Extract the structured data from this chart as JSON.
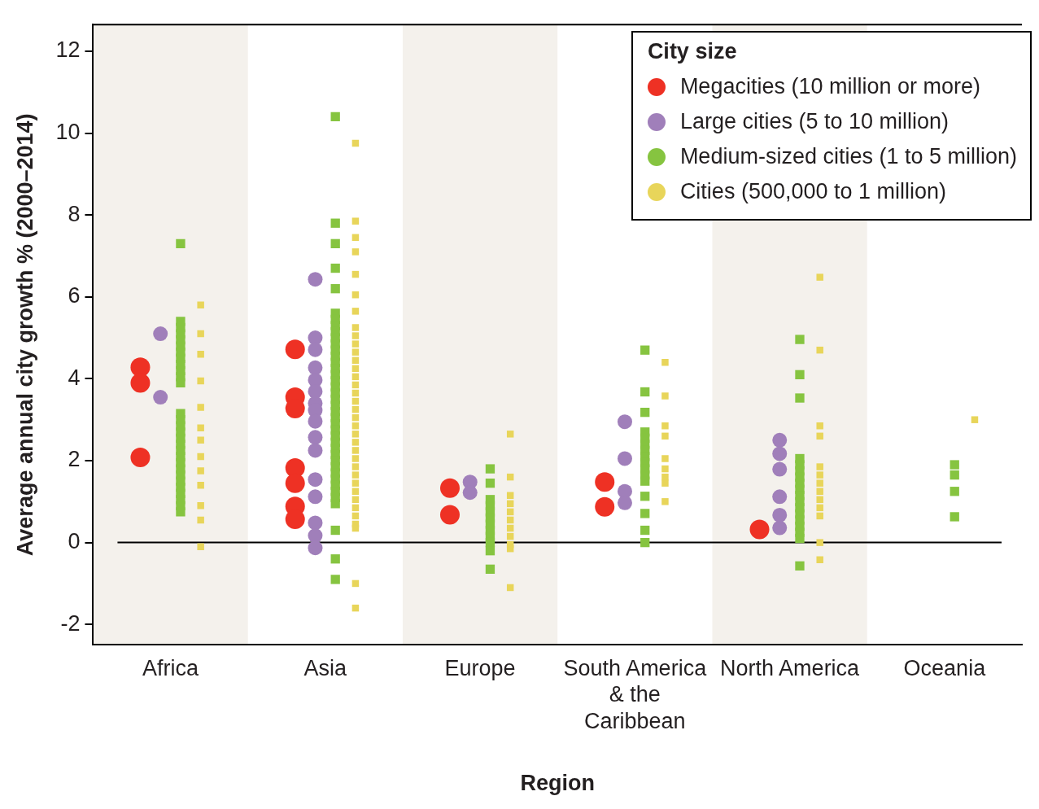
{
  "chart_data": {
    "type": "scatter",
    "xlabel": "Region",
    "ylabel": "Average annual city growth % (2000–2014)",
    "legend_title": "City size",
    "legend": "top right",
    "grid": false,
    "categories": [
      "Africa",
      "Asia",
      "Europe",
      "South America & the Caribbean",
      "North America",
      "Oceania"
    ],
    "ylim": [
      -2.5,
      12.65
    ],
    "yticks": [
      -2,
      0,
      2,
      4,
      6,
      8,
      10,
      12
    ],
    "bands": [
      {
        "axis": "x",
        "from": "Africa",
        "to": "Africa",
        "color": "#f4f1ec"
      },
      {
        "axis": "x",
        "from": "Europe",
        "to": "Europe",
        "color": "#f4f1ec"
      },
      {
        "axis": "x",
        "from": "North America",
        "to": "North America",
        "color": "#f4f1ec"
      }
    ],
    "ref_lines": [
      {
        "axis": "y",
        "value": 0,
        "color": "#000000"
      }
    ],
    "series": [
      {
        "name": "Megacities (10 million or more)",
        "color": "#ee3124",
        "marker": "circle",
        "x": [
          "Africa",
          "Africa",
          "Africa",
          "Asia",
          "Asia",
          "Asia",
          "Asia",
          "Asia",
          "Asia",
          "Asia",
          "Europe",
          "Europe",
          "South America & the Caribbean",
          "South America & the Caribbean",
          "North America"
        ],
        "values": [
          4.28,
          3.9,
          2.08,
          4.72,
          3.55,
          3.27,
          1.82,
          1.45,
          0.88,
          0.57,
          1.33,
          0.68,
          1.48,
          0.87,
          0.32
        ]
      },
      {
        "name": "Large cities (5 to 10 million)",
        "color": "#a07fba",
        "marker": "circle",
        "x": [
          "Africa",
          "Africa",
          "Asia",
          "Asia",
          "Asia",
          "Asia",
          "Asia",
          "Asia",
          "Asia",
          "Asia",
          "Asia",
          "Asia",
          "Asia",
          "Asia",
          "Asia",
          "Asia",
          "Asia",
          "Asia",
          "Europe",
          "Europe",
          "South America & the Caribbean",
          "South America & the Caribbean",
          "South America & the Caribbean",
          "South America & the Caribbean",
          "North America",
          "North America",
          "North America",
          "North America",
          "North America",
          "North America"
        ],
        "values": [
          5.1,
          3.55,
          6.43,
          5.0,
          4.71,
          4.27,
          3.97,
          3.69,
          3.4,
          3.23,
          2.96,
          2.57,
          2.25,
          1.54,
          1.12,
          0.48,
          0.17,
          -0.13,
          1.48,
          1.22,
          2.95,
          2.05,
          1.25,
          0.97,
          2.5,
          2.17,
          1.79,
          1.12,
          0.67,
          0.36
        ]
      },
      {
        "name": "Medium-sized cities (1 to 5 million)",
        "color": "#86c440",
        "marker": "square",
        "x": [
          "Africa",
          "Africa",
          "Africa",
          "Africa",
          "Africa",
          "Africa",
          "Africa",
          "Africa",
          "Africa",
          "Africa",
          "Africa",
          "Africa",
          "Africa",
          "Africa",
          "Africa",
          "Africa",
          "Africa",
          "Africa",
          "Africa",
          "Africa",
          "Africa",
          "Africa",
          "Africa",
          "Africa",
          "Africa",
          "Africa",
          "Africa",
          "Africa",
          "Africa",
          "Asia",
          "Asia",
          "Asia",
          "Asia",
          "Asia",
          "Asia",
          "Asia",
          "Asia",
          "Asia",
          "Asia",
          "Asia",
          "Asia",
          "Asia",
          "Asia",
          "Asia",
          "Asia",
          "Asia",
          "Asia",
          "Asia",
          "Asia",
          "Asia",
          "Asia",
          "Asia",
          "Asia",
          "Asia",
          "Asia",
          "Asia",
          "Asia",
          "Asia",
          "Asia",
          "Asia",
          "Asia",
          "Asia",
          "Asia",
          "Asia",
          "Asia",
          "Asia",
          "Asia",
          "Asia",
          "Asia",
          "Europe",
          "Europe",
          "Europe",
          "Europe",
          "Europe",
          "Europe",
          "Europe",
          "Europe",
          "Europe",
          "Europe",
          "Europe",
          "Europe",
          "South America & the Caribbean",
          "South America & the Caribbean",
          "South America & the Caribbean",
          "South America & the Caribbean",
          "South America & the Caribbean",
          "South America & the Caribbean",
          "South America & the Caribbean",
          "South America & the Caribbean",
          "South America & the Caribbean",
          "South America & the Caribbean",
          "South America & the Caribbean",
          "South America & the Caribbean",
          "South America & the Caribbean",
          "South America & the Caribbean",
          "South America & the Caribbean",
          "South America & the Caribbean",
          "North America",
          "North America",
          "North America",
          "North America",
          "North America",
          "North America",
          "North America",
          "North America",
          "North America",
          "North America",
          "North America",
          "North America",
          "North America",
          "North America",
          "North America",
          "North America",
          "North America",
          "North America",
          "Oceania",
          "Oceania",
          "Oceania",
          "Oceania"
        ],
        "values": [
          7.3,
          5.4,
          5.25,
          5.1,
          4.95,
          4.8,
          4.65,
          4.5,
          4.35,
          4.2,
          4.05,
          3.9,
          3.15,
          3.0,
          2.85,
          2.7,
          2.55,
          2.4,
          2.25,
          2.1,
          1.95,
          1.8,
          1.65,
          1.5,
          1.35,
          1.2,
          1.05,
          0.9,
          0.75,
          10.4,
          7.8,
          7.3,
          6.7,
          6.2,
          5.6,
          5.45,
          5.3,
          5.15,
          5.0,
          4.85,
          4.7,
          4.55,
          4.4,
          4.25,
          4.1,
          3.95,
          3.8,
          3.65,
          3.5,
          3.35,
          3.2,
          3.05,
          2.9,
          2.75,
          2.6,
          2.45,
          2.3,
          2.15,
          2.0,
          1.85,
          1.7,
          1.55,
          1.4,
          1.25,
          1.1,
          0.95,
          0.3,
          -0.4,
          -0.9,
          1.8,
          1.45,
          1.05,
          0.9,
          0.75,
          0.6,
          0.45,
          0.3,
          0.15,
          0,
          -0.2,
          -0.65,
          4.7,
          3.68,
          3.18,
          2.7,
          2.55,
          2.4,
          2.25,
          2.1,
          1.95,
          1.8,
          1.65,
          1.5,
          1.13,
          0.71,
          0.3,
          0,
          4.96,
          4.1,
          3.53,
          2.05,
          1.9,
          1.75,
          1.6,
          1.45,
          1.3,
          1.15,
          1.0,
          0.85,
          0.7,
          0.55,
          0.4,
          0.25,
          0.1,
          -0.57,
          1.9,
          1.65,
          1.25,
          0.63
        ]
      },
      {
        "name": "Cities (500,000 to 1 million)",
        "color": "#e8d55a",
        "marker": "square",
        "x": [
          "Africa",
          "Africa",
          "Africa",
          "Africa",
          "Africa",
          "Africa",
          "Africa",
          "Africa",
          "Africa",
          "Africa",
          "Africa",
          "Africa",
          "Africa",
          "Asia",
          "Asia",
          "Asia",
          "Asia",
          "Asia",
          "Asia",
          "Asia",
          "Asia",
          "Asia",
          "Asia",
          "Asia",
          "Asia",
          "Asia",
          "Asia",
          "Asia",
          "Asia",
          "Asia",
          "Asia",
          "Asia",
          "Asia",
          "Asia",
          "Asia",
          "Asia",
          "Asia",
          "Asia",
          "Asia",
          "Asia",
          "Asia",
          "Asia",
          "Asia",
          "Asia",
          "Asia",
          "Asia",
          "Asia",
          "Asia",
          "Europe",
          "Europe",
          "Europe",
          "Europe",
          "Europe",
          "Europe",
          "Europe",
          "Europe",
          "Europe",
          "Europe",
          "Europe",
          "South America & the Caribbean",
          "South America & the Caribbean",
          "South America & the Caribbean",
          "South America & the Caribbean",
          "South America & the Caribbean",
          "South America & the Caribbean",
          "South America & the Caribbean",
          "South America & the Caribbean",
          "South America & the Caribbean",
          "North America",
          "North America",
          "North America",
          "North America",
          "North America",
          "North America",
          "North America",
          "North America",
          "North America",
          "North America",
          "North America",
          "North America",
          "North America",
          "Oceania"
        ],
        "values": [
          5.8,
          5.1,
          4.6,
          3.95,
          3.3,
          2.8,
          2.5,
          2.1,
          1.75,
          1.4,
          0.9,
          0.55,
          -0.1,
          9.75,
          7.85,
          7.45,
          7.1,
          6.55,
          6.05,
          5.65,
          5.25,
          5.05,
          4.85,
          4.65,
          4.45,
          4.25,
          4.05,
          3.85,
          3.65,
          3.45,
          3.25,
          3.05,
          2.85,
          2.65,
          2.45,
          2.25,
          2.05,
          1.85,
          1.65,
          1.45,
          1.25,
          1.05,
          0.85,
          0.65,
          0.45,
          0.35,
          -1.0,
          -1.6,
          2.65,
          1.6,
          1.15,
          0.95,
          0.75,
          0.55,
          0.35,
          0.15,
          -0.05,
          -0.15,
          -1.1,
          4.4,
          3.58,
          2.85,
          2.6,
          2.05,
          1.8,
          1.6,
          1.45,
          1.0,
          6.48,
          4.7,
          2.85,
          2.6,
          1.85,
          1.65,
          1.45,
          1.25,
          1.05,
          0.85,
          0.65,
          0.0,
          -0.42,
          3.0
        ]
      }
    ]
  }
}
